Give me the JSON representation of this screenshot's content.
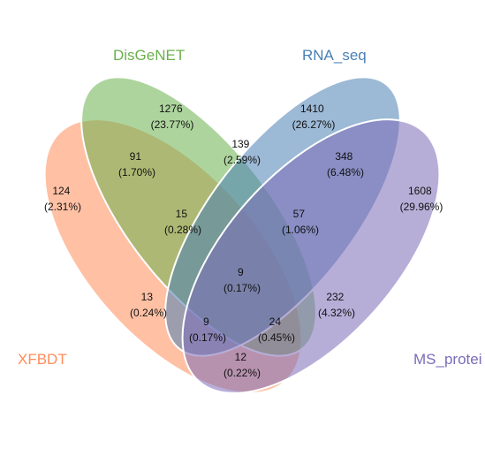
{
  "sets": [
    {
      "key": "xfbdt",
      "name": "XFBDT",
      "color": "#FF8C5A"
    },
    {
      "key": "disgenet",
      "name": "DisGeNET",
      "color": "#6AB04C"
    },
    {
      "key": "rnaseq",
      "name": "RNA_seq",
      "color": "#4A80B4"
    },
    {
      "key": "msprotein",
      "name": "MS_protei",
      "color": "#7B6BB8"
    }
  ],
  "regions": [
    {
      "key": "x",
      "count": "124",
      "percent": "(2.31%)"
    },
    {
      "key": "d",
      "count": "1276",
      "percent": "(23.77%)"
    },
    {
      "key": "r",
      "count": "1410",
      "percent": "(26.27%)"
    },
    {
      "key": "m",
      "count": "1608",
      "percent": "(29.96%)"
    },
    {
      "key": "xd",
      "count": "91",
      "percent": "(1.70%)"
    },
    {
      "key": "dr",
      "count": "139",
      "percent": "(2.59%)"
    },
    {
      "key": "rm",
      "count": "348",
      "percent": "(6.48%)"
    },
    {
      "key": "xdr",
      "count": "15",
      "percent": "(0.28%)"
    },
    {
      "key": "drm",
      "count": "57",
      "percent": "(1.06%)"
    },
    {
      "key": "xdrm",
      "count": "9",
      "percent": "(0.17%)"
    },
    {
      "key": "xr",
      "count": "13",
      "percent": "(0.24%)"
    },
    {
      "key": "dm",
      "count": "232",
      "percent": "(4.32%)"
    },
    {
      "key": "xrm",
      "count": "9",
      "percent": "(0.17%)"
    },
    {
      "key": "xdm",
      "count": "24",
      "percent": "(0.45%)"
    },
    {
      "key": "xm",
      "count": "12",
      "percent": "(0.22%)"
    }
  ]
}
